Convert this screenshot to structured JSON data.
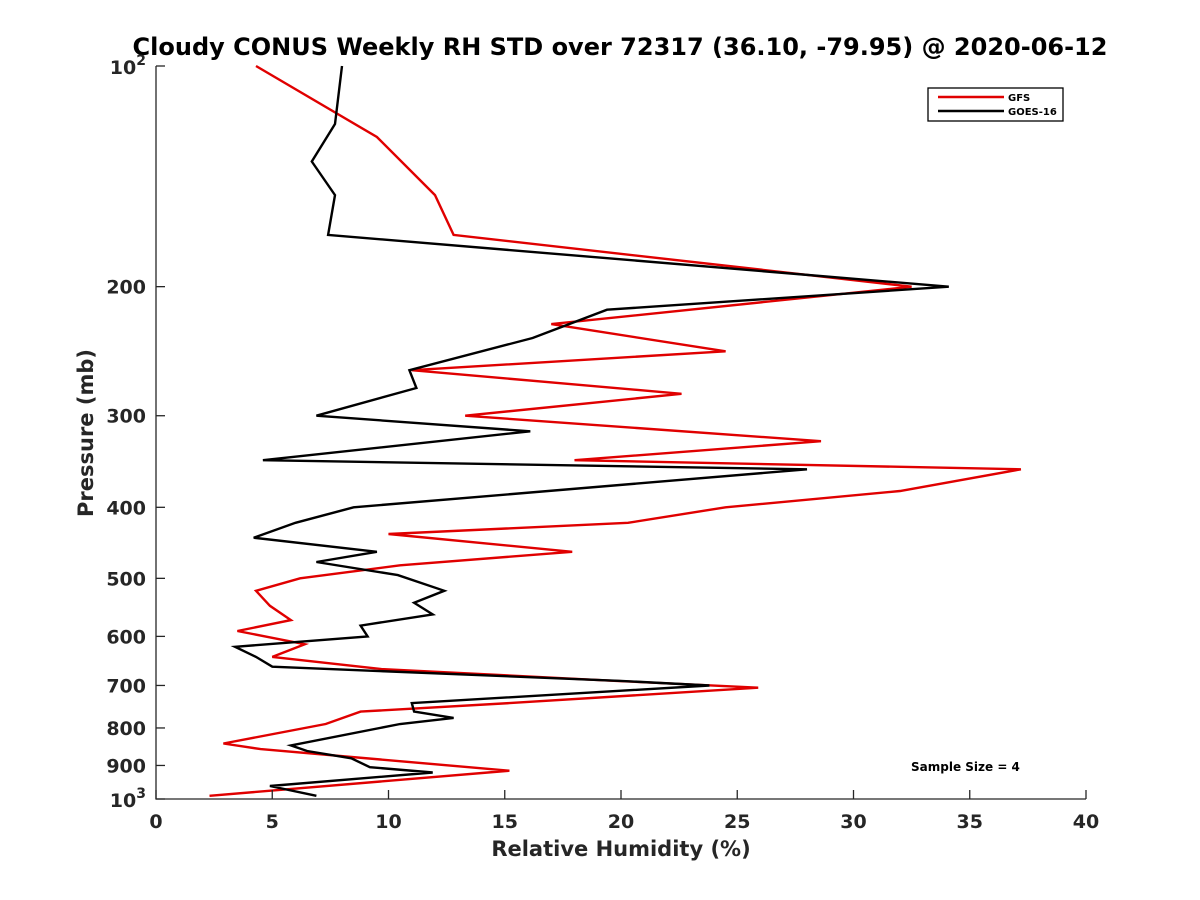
{
  "chart_data": {
    "type": "line",
    "title": "Cloudy CONUS Weekly RH STD over 72317 (36.10, -79.95) @ 2020-06-12",
    "xlabel": "Relative Humidity (%)",
    "ylabel": "Pressure (mb)",
    "xlim": [
      0,
      40
    ],
    "ylim": [
      100,
      1000
    ],
    "y_scale": "log",
    "y_reversed": true,
    "x_ticks": [
      "0",
      "5",
      "10",
      "15",
      "20",
      "25",
      "30",
      "35",
      "40"
    ],
    "y_ticks": [
      {
        "value": 100,
        "base": "10",
        "exp": "2"
      },
      {
        "value": 200,
        "label": "200"
      },
      {
        "value": 300,
        "label": "300"
      },
      {
        "value": 400,
        "label": "400"
      },
      {
        "value": 500,
        "label": "500"
      },
      {
        "value": 600,
        "label": "600"
      },
      {
        "value": 700,
        "label": "700"
      },
      {
        "value": 800,
        "label": "800"
      },
      {
        "value": 900,
        "label": "900"
      },
      {
        "value": 1000,
        "base": "10",
        "exp": "3"
      }
    ],
    "legend_position": "top-right",
    "grid": false,
    "annotation": "Sample Size = 4",
    "series": [
      {
        "name": "GFS",
        "color": "#e00000",
        "points": [
          [
            4.3,
            100
          ],
          [
            9.5,
            125
          ],
          [
            12.0,
            150
          ],
          [
            12.8,
            170
          ],
          [
            32.5,
            200
          ],
          [
            17.0,
            225
          ],
          [
            24.5,
            245
          ],
          [
            11.0,
            260
          ],
          [
            22.6,
            280
          ],
          [
            13.3,
            300
          ],
          [
            28.6,
            325
          ],
          [
            18.0,
            345
          ],
          [
            37.2,
            355
          ],
          [
            32.0,
            380
          ],
          [
            24.5,
            400
          ],
          [
            20.3,
            420
          ],
          [
            10.0,
            435
          ],
          [
            17.9,
            460
          ],
          [
            10.5,
            480
          ],
          [
            6.2,
            500
          ],
          [
            4.3,
            520
          ],
          [
            4.9,
            545
          ],
          [
            5.8,
            570
          ],
          [
            3.5,
            590
          ],
          [
            6.4,
            615
          ],
          [
            5.0,
            640
          ],
          [
            9.7,
            665
          ],
          [
            19.8,
            690
          ],
          [
            25.9,
            705
          ],
          [
            15.2,
            740
          ],
          [
            8.8,
            760
          ],
          [
            7.3,
            790
          ],
          [
            2.9,
            840
          ],
          [
            4.5,
            855
          ],
          [
            15.2,
            915
          ],
          [
            2.3,
            990
          ]
        ]
      },
      {
        "name": "GOES-16",
        "color": "#000000",
        "points": [
          [
            8.0,
            100
          ],
          [
            7.7,
            120
          ],
          [
            6.7,
            135
          ],
          [
            7.7,
            150
          ],
          [
            7.4,
            170
          ],
          [
            34.1,
            200
          ],
          [
            19.4,
            215
          ],
          [
            16.2,
            235
          ],
          [
            10.9,
            260
          ],
          [
            11.2,
            275
          ],
          [
            6.9,
            300
          ],
          [
            16.1,
            315
          ],
          [
            4.6,
            345
          ],
          [
            28.0,
            355
          ],
          [
            8.5,
            400
          ],
          [
            6.0,
            420
          ],
          [
            4.2,
            440
          ],
          [
            9.5,
            460
          ],
          [
            6.9,
            475
          ],
          [
            10.4,
            495
          ],
          [
            12.4,
            520
          ],
          [
            11.1,
            540
          ],
          [
            11.9,
            560
          ],
          [
            8.8,
            580
          ],
          [
            9.1,
            600
          ],
          [
            3.4,
            620
          ],
          [
            4.3,
            640
          ],
          [
            5.0,
            660
          ],
          [
            20.0,
            690
          ],
          [
            23.8,
            700
          ],
          [
            11.0,
            740
          ],
          [
            11.1,
            760
          ],
          [
            12.8,
            775
          ],
          [
            10.5,
            790
          ],
          [
            5.8,
            845
          ],
          [
            6.5,
            860
          ],
          [
            8.4,
            880
          ],
          [
            9.2,
            905
          ],
          [
            11.9,
            920
          ],
          [
            4.9,
            960
          ],
          [
            6.9,
            990
          ]
        ]
      }
    ]
  }
}
